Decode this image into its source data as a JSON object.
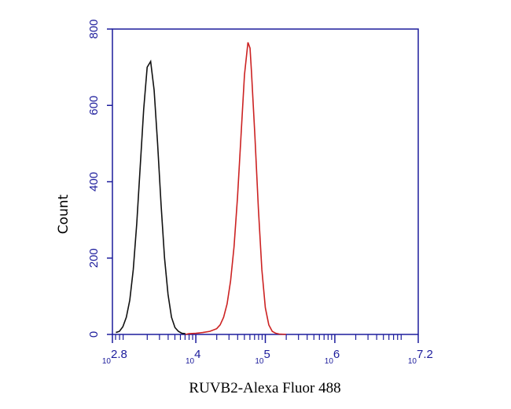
{
  "chart_data": {
    "type": "line",
    "xlabel": "RUVB2-Alexa Fluor 488",
    "ylabel": "Count",
    "xscale": "log",
    "xtick_base": "10",
    "xlim": [
      2.8,
      7.2
    ],
    "xticks": [
      2.8,
      4,
      5,
      6,
      7.2
    ],
    "ylim": [
      0,
      800
    ],
    "yticks": [
      0,
      200,
      400,
      600,
      800
    ],
    "frame_color": "#1c1c9c",
    "series": [
      {
        "color": "#111111",
        "x": [
          2.85,
          2.9,
          2.95,
          3.0,
          3.05,
          3.1,
          3.15,
          3.2,
          3.25,
          3.3,
          3.35,
          3.4,
          3.45,
          3.5,
          3.55,
          3.6,
          3.65,
          3.7,
          3.75,
          3.8,
          3.85
        ],
        "values": [
          5,
          8,
          20,
          45,
          90,
          170,
          290,
          440,
          590,
          700,
          715,
          640,
          500,
          340,
          200,
          105,
          45,
          18,
          8,
          3,
          2
        ]
      },
      {
        "color": "#cc2222",
        "x": [
          3.85,
          3.9,
          4.0,
          4.1,
          4.2,
          4.3,
          4.35,
          4.4,
          4.45,
          4.5,
          4.55,
          4.6,
          4.65,
          4.7,
          4.75,
          4.78,
          4.8,
          4.85,
          4.9,
          4.95,
          5.0,
          5.05,
          5.1,
          5.15,
          5.2,
          5.3
        ],
        "values": [
          0,
          2,
          3,
          5,
          8,
          15,
          25,
          45,
          80,
          140,
          230,
          360,
          520,
          680,
          765,
          750,
          690,
          520,
          330,
          170,
          70,
          25,
          8,
          3,
          1,
          0
        ]
      }
    ]
  }
}
